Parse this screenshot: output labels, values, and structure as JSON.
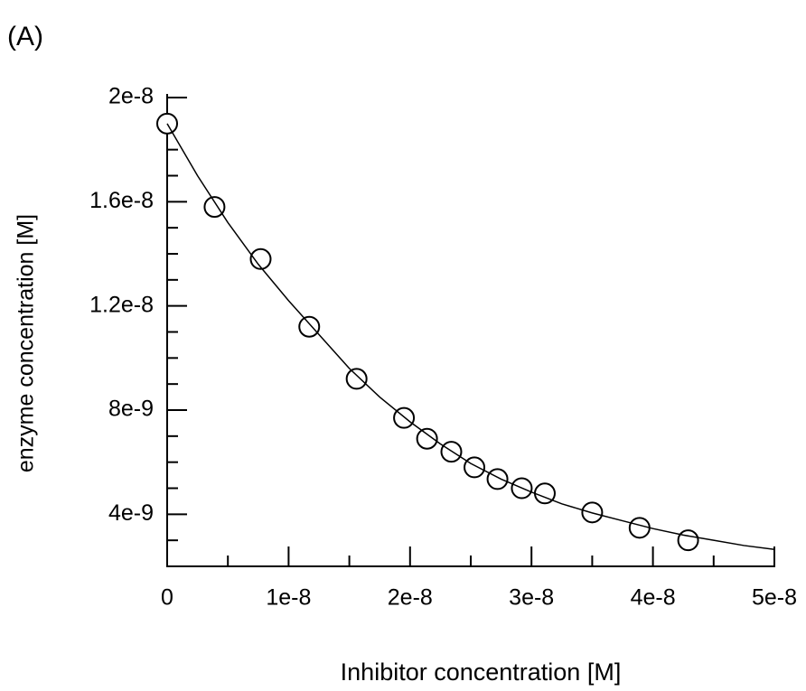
{
  "chart_data": {
    "type": "scatter",
    "title": "(A)",
    "x_label": "Inhibitor concentration [M]",
    "y_label": "enzyme concentration [M]",
    "xlim": [
      0,
      5e-08
    ],
    "ylim": [
      2e-09,
      2e-08
    ],
    "xticks": [
      0,
      {
        "value": 1e-08,
        "label": "1e-8"
      },
      {
        "value": 2e-08,
        "label": "2e-8"
      },
      {
        "value": 3e-08,
        "label": "3e-8"
      },
      {
        "value": 4e-08,
        "label": "4e-8"
      },
      {
        "value": 5e-08,
        "label": "5e-8"
      }
    ],
    "xminorticks": [
      5e-09,
      1.5e-08,
      2.5e-08,
      3.5e-08,
      4.5e-08
    ],
    "yticks": [
      {
        "value": 4e-09,
        "label": "4e-9"
      },
      {
        "value": 8e-09,
        "label": "8e-9"
      },
      {
        "value": 1.2e-08,
        "label": "1.2e-8"
      },
      {
        "value": 1.6e-08,
        "label": "1.6e-8"
      },
      {
        "value": 2e-08,
        "label": "2e-8"
      }
    ],
    "yminorticks": [
      3e-09,
      5e-09,
      6e-09,
      7e-09,
      9e-09,
      1e-08,
      1.1e-08,
      1.3e-08,
      1.4e-08,
      1.5e-08,
      1.7e-08,
      1.8e-08,
      1.9e-08
    ],
    "series": [
      {
        "name": "data",
        "color": "#000000",
        "x": [
          0,
          3.9e-09,
          7.7e-09,
          1.17e-08,
          1.56e-08,
          1.95e-08,
          2.14e-08,
          2.34e-08,
          2.53e-08,
          2.72e-08,
          2.92e-08,
          3.11e-08,
          3.5e-08,
          3.89e-08,
          4.29e-08
        ],
        "values": [
          1.9e-08,
          1.58e-08,
          1.38e-08,
          1.12e-08,
          9.2e-09,
          7.7e-09,
          6.9e-09,
          6.4e-09,
          5.8e-09,
          5.35e-09,
          5e-09,
          4.8e-09,
          4.07e-09,
          3.48e-09,
          3e-09
        ]
      },
      {
        "name": "fit",
        "color": "#000000",
        "x": [
          0,
          2.5e-09,
          5e-09,
          7.5e-09,
          1e-08,
          1.25e-08,
          1.5e-08,
          1.75e-08,
          2e-08,
          2.25e-08,
          2.5e-08,
          2.75e-08,
          3e-08,
          3.25e-08,
          3.5e-08,
          3.75e-08,
          4e-08,
          4.25e-08,
          4.5e-08,
          4.75e-08,
          5e-08
        ],
        "values": [
          1.9e-08,
          1.7e-08,
          1.52e-08,
          1.36e-08,
          1.22e-08,
          1.09e-08,
          9.6e-09,
          8.5e-09,
          7.55e-09,
          6.7e-09,
          5.95e-09,
          5.35e-09,
          4.85e-09,
          4.4e-09,
          4.05e-09,
          3.75e-09,
          3.45e-09,
          3.2e-09,
          3e-09,
          2.8e-09,
          2.65e-09
        ]
      }
    ]
  }
}
